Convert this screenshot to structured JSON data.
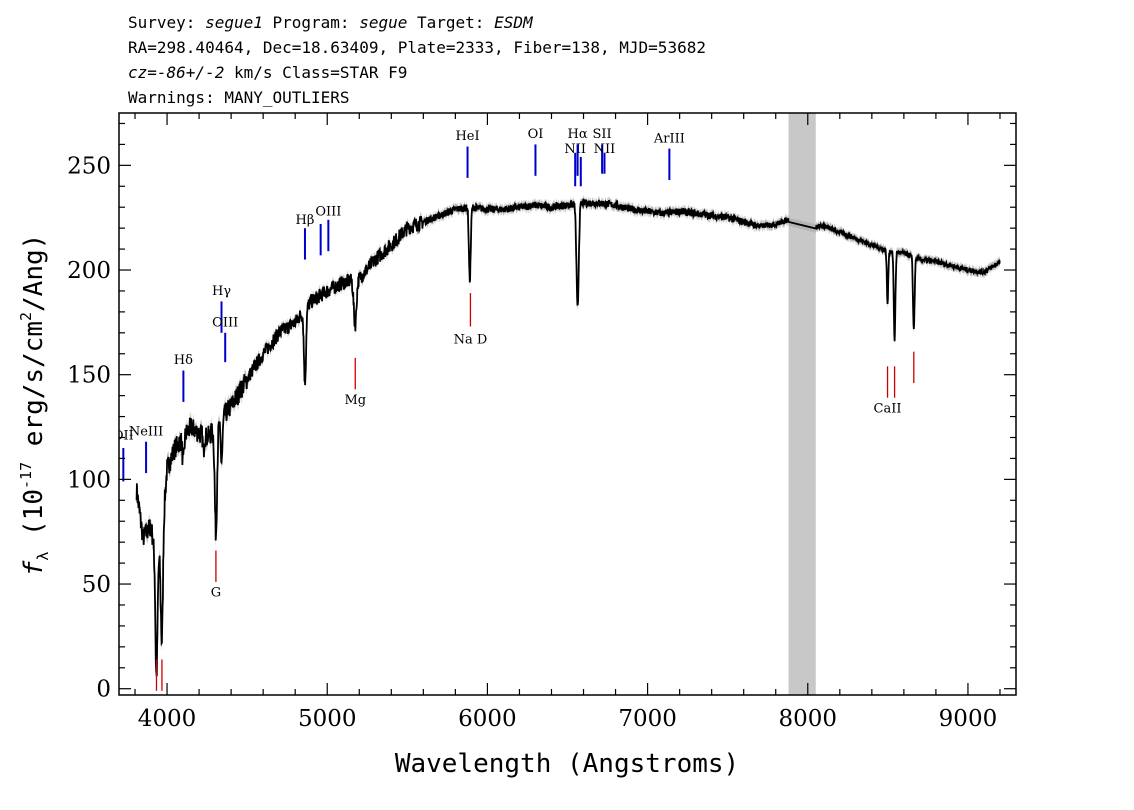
{
  "header": {
    "line1": {
      "survey_label": "Survey: ",
      "survey": "segue1",
      "program_label": " Program: ",
      "program": "segue",
      "target_label": " Target: ",
      "target": "ESDM"
    },
    "line2": "RA=298.40464, Dec=18.63409, Plate=2333, Fiber=138, MJD=53682",
    "line3": {
      "cz_label": "cz",
      "cz_value": "=-86+/-2",
      "cz_unit": " km/s Class=STAR F9"
    },
    "line4": "Warnings: MANY_OUTLIERS"
  },
  "chart_data": {
    "type": "line",
    "xlabel": "Wavelength (Angstroms)",
    "ylabel": "(10  erg/s/cm /Ang)",
    "ylabel_symbol": "f",
    "ylabel_sub": "λ",
    "ylabel_exp": "-17",
    "ylabel_sq": "2",
    "xlim": [
      3700,
      9300
    ],
    "ylim": [
      -3,
      275
    ],
    "xticks": [
      4000,
      5000,
      6000,
      7000,
      8000,
      9000
    ],
    "yticks": [
      0,
      50,
      100,
      150,
      200,
      250
    ],
    "masked_region": [
      7880,
      8050
    ],
    "colors": {
      "spectrum": "#000000",
      "error": "#b4b4b4",
      "emission": "#0000cc",
      "absorption": "#cc0000",
      "mask": "#c8c8c8"
    },
    "continuum": [
      [
        3810,
        95
      ],
      [
        3850,
        72
      ],
      [
        3900,
        78
      ],
      [
        3930,
        60
      ],
      [
        3960,
        65
      ],
      [
        4000,
        105
      ],
      [
        4050,
        115
      ],
      [
        4100,
        120
      ],
      [
        4150,
        125
      ],
      [
        4200,
        122
      ],
      [
        4250,
        120
      ],
      [
        4300,
        124
      ],
      [
        4330,
        128
      ],
      [
        4400,
        135
      ],
      [
        4500,
        148
      ],
      [
        4600,
        160
      ],
      [
        4700,
        170
      ],
      [
        4800,
        175
      ],
      [
        4900,
        185
      ],
      [
        5000,
        190
      ],
      [
        5100,
        194
      ],
      [
        5200,
        196
      ],
      [
        5300,
        205
      ],
      [
        5400,
        212
      ],
      [
        5500,
        220
      ],
      [
        5600,
        223
      ],
      [
        5700,
        226
      ],
      [
        5800,
        229
      ],
      [
        5900,
        230
      ],
      [
        6000,
        229
      ],
      [
        6100,
        229
      ],
      [
        6200,
        230
      ],
      [
        6300,
        231
      ],
      [
        6400,
        230
      ],
      [
        6500,
        231
      ],
      [
        6600,
        232
      ],
      [
        6700,
        232
      ],
      [
        6800,
        231
      ],
      [
        6900,
        229
      ],
      [
        7000,
        228
      ],
      [
        7100,
        227
      ],
      [
        7200,
        228
      ],
      [
        7300,
        227
      ],
      [
        7400,
        226
      ],
      [
        7500,
        225
      ],
      [
        7600,
        223
      ],
      [
        7700,
        221
      ],
      [
        7800,
        222
      ],
      [
        7880,
        224
      ],
      [
        8050,
        221
      ],
      [
        8100,
        221
      ],
      [
        8200,
        218
      ],
      [
        8300,
        215
      ],
      [
        8400,
        212
      ],
      [
        8500,
        209
      ],
      [
        8600,
        208
      ],
      [
        8700,
        205
      ],
      [
        8800,
        204
      ],
      [
        8900,
        202
      ],
      [
        9000,
        200
      ],
      [
        9100,
        199
      ],
      [
        9200,
        204
      ]
    ],
    "absorption_features": [
      {
        "x": 3934,
        "depth": 55,
        "width": 9
      },
      {
        "x": 3968,
        "depth": 50,
        "width": 9
      },
      {
        "x": 4101,
        "depth": 12,
        "width": 8
      },
      {
        "x": 4227,
        "depth": 8,
        "width": 5
      },
      {
        "x": 4305,
        "depth": 50,
        "width": 10
      },
      {
        "x": 4340,
        "depth": 20,
        "width": 9
      },
      {
        "x": 4861,
        "depth": 35,
        "width": 9
      },
      {
        "x": 5174,
        "depth": 22,
        "width": 12
      },
      {
        "x": 5890,
        "depth": 35,
        "width": 8
      },
      {
        "x": 6563,
        "depth": 50,
        "width": 10
      },
      {
        "x": 8498,
        "depth": 25,
        "width": 6
      },
      {
        "x": 8542,
        "depth": 42,
        "width": 7
      },
      {
        "x": 8662,
        "depth": 35,
        "width": 7
      }
    ],
    "emission_lines": [
      {
        "label": "OII",
        "x": 3727,
        "y_top": 115,
        "y_bot": 99,
        "label_y": 119
      },
      {
        "label": "NeIII",
        "x": 3869,
        "y_top": 118,
        "y_bot": 103,
        "label_y": 121
      },
      {
        "label": "Hδ",
        "x": 4102,
        "y_top": 152,
        "y_bot": 137,
        "label_y": 155
      },
      {
        "label": "Hγ",
        "x": 4340,
        "y_top": 185,
        "y_bot": 170,
        "label_y": 188
      },
      {
        "label": "OIII",
        "x": 4363,
        "y_top": 170,
        "y_bot": 156,
        "label_y": 173
      },
      {
        "label": "Hβ",
        "x": 4861,
        "y_top": 220,
        "y_bot": 205,
        "label_y": 222
      },
      {
        "label": "",
        "x": 4959,
        "y_top": 222,
        "y_bot": 207,
        "label_y": 0
      },
      {
        "label": "OIII",
        "x": 5007,
        "y_top": 224,
        "y_bot": 209,
        "label_y": 226
      },
      {
        "label": "HeI",
        "x": 5876,
        "y_top": 259,
        "y_bot": 244,
        "label_y": 262
      },
      {
        "label": "OI",
        "x": 6300,
        "y_top": 260,
        "y_bot": 245,
        "label_y": 263
      },
      {
        "label": "NII",
        "x": 6548,
        "y_top": 256,
        "y_bot": 240,
        "label_y": 256
      },
      {
        "label": "Hα",
        "x": 6563,
        "y_top": 260,
        "y_bot": 245,
        "label_y": 263
      },
      {
        "label": "",
        "x": 6583,
        "y_top": 254,
        "y_bot": 240,
        "label_y": 0
      },
      {
        "label": "SII",
        "x": 6716,
        "y_top": 260,
        "y_bot": 246,
        "label_y": 263
      },
      {
        "label": "NII",
        "x": 6731,
        "y_top": 256,
        "y_bot": 246,
        "label_y": 256
      },
      {
        "label": "ArIII",
        "x": 7136,
        "y_top": 258,
        "y_bot": 243,
        "label_y": 261
      }
    ],
    "absorption_lines": [
      {
        "label": "",
        "x": 3934,
        "y_top": 14,
        "y_bot": -1,
        "label_y": 0
      },
      {
        "label": "",
        "x": 3968,
        "y_top": 14,
        "y_bot": -1,
        "label_y": 0
      },
      {
        "label": "G",
        "x": 4305,
        "y_top": 66,
        "y_bot": 51,
        "label_y": 44
      },
      {
        "label": "Mg",
        "x": 5175,
        "y_top": 158,
        "y_bot": 143,
        "label_y": 136
      },
      {
        "label": "Na D",
        "x": 5894,
        "y_top": 189,
        "y_bot": 173,
        "label_y": 165
      },
      {
        "label": "CaII",
        "x": 8498,
        "y_top": 154,
        "y_bot": 139,
        "label_y": 132
      },
      {
        "label": "",
        "x": 8542,
        "y_top": 154,
        "y_bot": 139,
        "label_y": 0
      },
      {
        "label": "",
        "x": 8662,
        "y_top": 161,
        "y_bot": 146,
        "label_y": 0
      }
    ]
  }
}
